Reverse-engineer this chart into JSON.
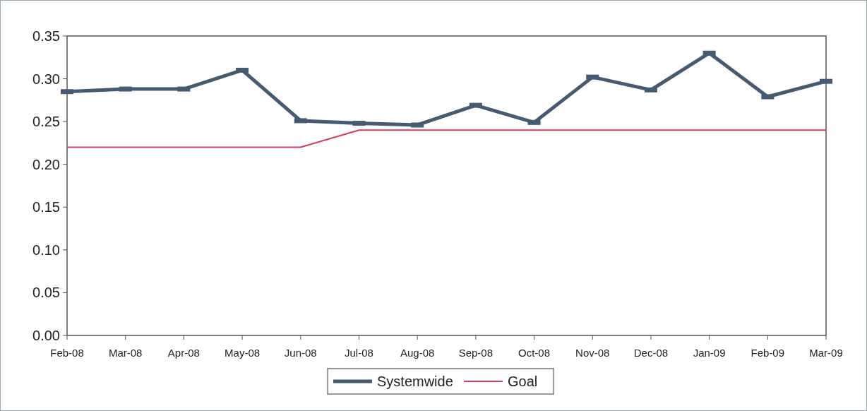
{
  "chart_data": {
    "type": "line",
    "categories": [
      "Feb-08",
      "Mar-08",
      "Apr-08",
      "May-08",
      "Jun-08",
      "Jul-08",
      "Aug-08",
      "Sep-08",
      "Oct-08",
      "Nov-08",
      "Dec-08",
      "Jan-09",
      "Feb-09",
      "Mar-09"
    ],
    "series": [
      {
        "name": "Systemwide",
        "color": "#465a72",
        "marker": "square",
        "values": [
          0.285,
          0.288,
          0.288,
          0.31,
          0.251,
          0.248,
          0.246,
          0.269,
          0.249,
          0.302,
          0.287,
          0.33,
          0.279,
          0.297
        ]
      },
      {
        "name": "Goal",
        "color": "#d63c5e",
        "marker": "none",
        "values": [
          0.22,
          0.22,
          0.22,
          0.22,
          0.22,
          0.24,
          0.24,
          0.24,
          0.24,
          0.24,
          0.24,
          0.24,
          0.24,
          0.24
        ]
      }
    ],
    "ylim": [
      0,
      0.35
    ],
    "yticks": [
      {
        "value": 0,
        "label": "0.00"
      },
      {
        "value": 0.05,
        "label": "0.05"
      },
      {
        "value": 0.1,
        "label": "0.10"
      },
      {
        "value": 0.15,
        "label": "0.15"
      },
      {
        "value": 0.2,
        "label": "0.20"
      },
      {
        "value": 0.25,
        "label": "0.25"
      },
      {
        "value": 0.3,
        "label": "0.30"
      },
      {
        "value": 0.35,
        "label": "0.35"
      }
    ],
    "grid": false,
    "legend": "bottom"
  }
}
